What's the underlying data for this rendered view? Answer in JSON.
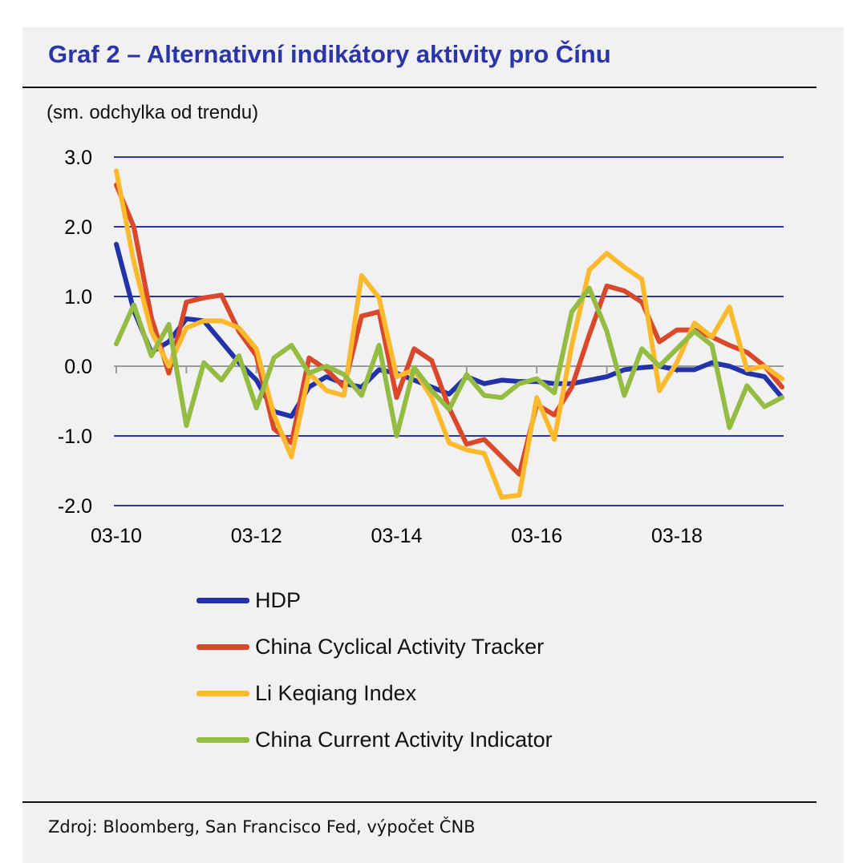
{
  "title": "Graf 2 – Alternativní indikátory aktivity pro Čínu",
  "unit_label": "(sm. odchylka od trendu)",
  "source": "Zdroj: Bloomberg, San Francisco Fed, výpočet ČNB",
  "colors": {
    "background": "#f1f1f1",
    "grid": "#2b35a8",
    "title": "#2b35a8"
  },
  "chart_data": {
    "type": "line",
    "title": "Graf 2 – Alternativní indikátory aktivity pro Čínu",
    "ylabel": "(sm. odchylka od trendu)",
    "xlabel": "",
    "ylim": [
      -2.0,
      3.0
    ],
    "yticks": [
      3.0,
      2.0,
      1.0,
      0.0,
      -1.0,
      -2.0
    ],
    "ytick_labels": [
      "3.0",
      "2.0",
      "1.0",
      "0.0",
      "-1.0",
      "-2.0"
    ],
    "x_range": [
      0,
      38
    ],
    "xticks": [
      0,
      8,
      16,
      24,
      32
    ],
    "xtick_labels": [
      "03-10",
      "03-12",
      "03-14",
      "03-16",
      "03-18"
    ],
    "x_frequency": "quarterly, Q1 2010 – Q3 2019",
    "grid": "horizontal",
    "legend": "bottom",
    "series": [
      {
        "name": "HDP",
        "color": "#2233aa",
        "values": [
          1.75,
          0.8,
          0.2,
          0.35,
          0.68,
          0.65,
          0.35,
          0.05,
          -0.2,
          -0.65,
          -0.72,
          -0.3,
          -0.15,
          -0.25,
          -0.3,
          -0.05,
          -0.1,
          -0.2,
          -0.3,
          -0.4,
          -0.15,
          -0.25,
          -0.2,
          -0.22,
          -0.22,
          -0.25,
          -0.25,
          -0.2,
          -0.15,
          -0.05,
          -0.02,
          0.0,
          -0.05,
          -0.05,
          0.05,
          0.0,
          -0.1,
          -0.15,
          -0.45
        ]
      },
      {
        "name": "China Cyclical Activity Tracker",
        "color": "#d9482b",
        "values": [
          2.6,
          2.0,
          0.7,
          -0.1,
          0.92,
          0.98,
          1.02,
          0.5,
          0.15,
          -0.9,
          -1.1,
          0.12,
          -0.05,
          -0.3,
          0.72,
          0.78,
          -0.45,
          0.25,
          0.08,
          -0.6,
          -1.12,
          -1.05,
          -1.3,
          -1.55,
          -0.55,
          -0.7,
          -0.3,
          0.45,
          1.15,
          1.08,
          0.92,
          0.35,
          0.52,
          0.52,
          0.42,
          0.3,
          0.2,
          0.0,
          -0.3
        ]
      },
      {
        "name": "Li Keqiang Index",
        "color": "#fbb92e",
        "values": [
          2.8,
          1.5,
          0.5,
          0.0,
          0.55,
          0.65,
          0.65,
          0.55,
          0.25,
          -0.7,
          -1.3,
          -0.1,
          -0.35,
          -0.42,
          1.3,
          0.98,
          -0.15,
          -0.05,
          -0.45,
          -1.1,
          -1.2,
          -1.25,
          -1.88,
          -1.85,
          -0.45,
          -1.05,
          0.3,
          1.38,
          1.62,
          1.42,
          1.25,
          -0.35,
          0.05,
          0.62,
          0.42,
          0.85,
          -0.05,
          0.0,
          -0.18
        ]
      },
      {
        "name": "China Current Activity Indicator",
        "color": "#94bc42",
        "values": [
          0.32,
          0.88,
          0.15,
          0.6,
          -0.85,
          0.05,
          -0.2,
          0.15,
          -0.6,
          0.12,
          0.3,
          -0.1,
          0.0,
          -0.12,
          -0.42,
          0.3,
          -1.0,
          -0.02,
          -0.35,
          -0.62,
          -0.12,
          -0.42,
          -0.45,
          -0.25,
          -0.18,
          -0.38,
          0.78,
          1.12,
          0.5,
          -0.42,
          0.25,
          0.0,
          0.25,
          0.5,
          0.3,
          -0.88,
          -0.28,
          -0.58,
          -0.45
        ]
      }
    ]
  }
}
